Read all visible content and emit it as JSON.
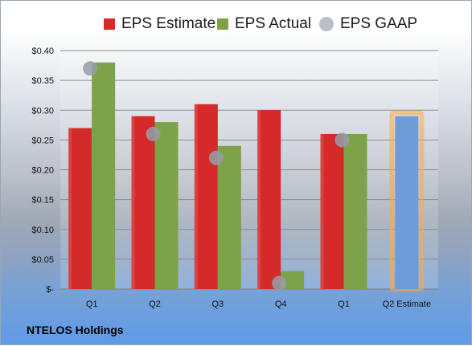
{
  "chart_data": {
    "type": "bar",
    "categories": [
      "Q1",
      "Q2",
      "Q3",
      "Q4",
      "Q1",
      "Q2 Estimate"
    ],
    "series": [
      {
        "name": "EPS Estimate",
        "values": [
          0.27,
          0.29,
          0.31,
          0.3,
          0.26,
          null
        ],
        "color": "#d42a2a"
      },
      {
        "name": "EPS Actual",
        "values": [
          0.38,
          0.28,
          0.24,
          0.03,
          0.26,
          0.29
        ],
        "color": "#7ea24a",
        "highlight_last_color": "#6f9bd8"
      },
      {
        "name": "EPS GAAP",
        "type": "scatter",
        "values": [
          0.37,
          0.26,
          0.22,
          0.01,
          0.25,
          null
        ],
        "color": "#9ba3ad"
      }
    ],
    "ylim": [
      0,
      0.4
    ],
    "yticks": [
      0,
      0.05,
      0.1,
      0.15,
      0.2,
      0.25,
      0.3,
      0.35,
      0.4
    ],
    "ytick_labels": [
      "$-",
      "$0.05",
      "$0.10",
      "$0.15",
      "$0.20",
      "$0.25",
      "$0.30",
      "$0.35",
      "$0.40"
    ],
    "grid": true,
    "legend": "top"
  },
  "title": "NTELOS Holdings"
}
